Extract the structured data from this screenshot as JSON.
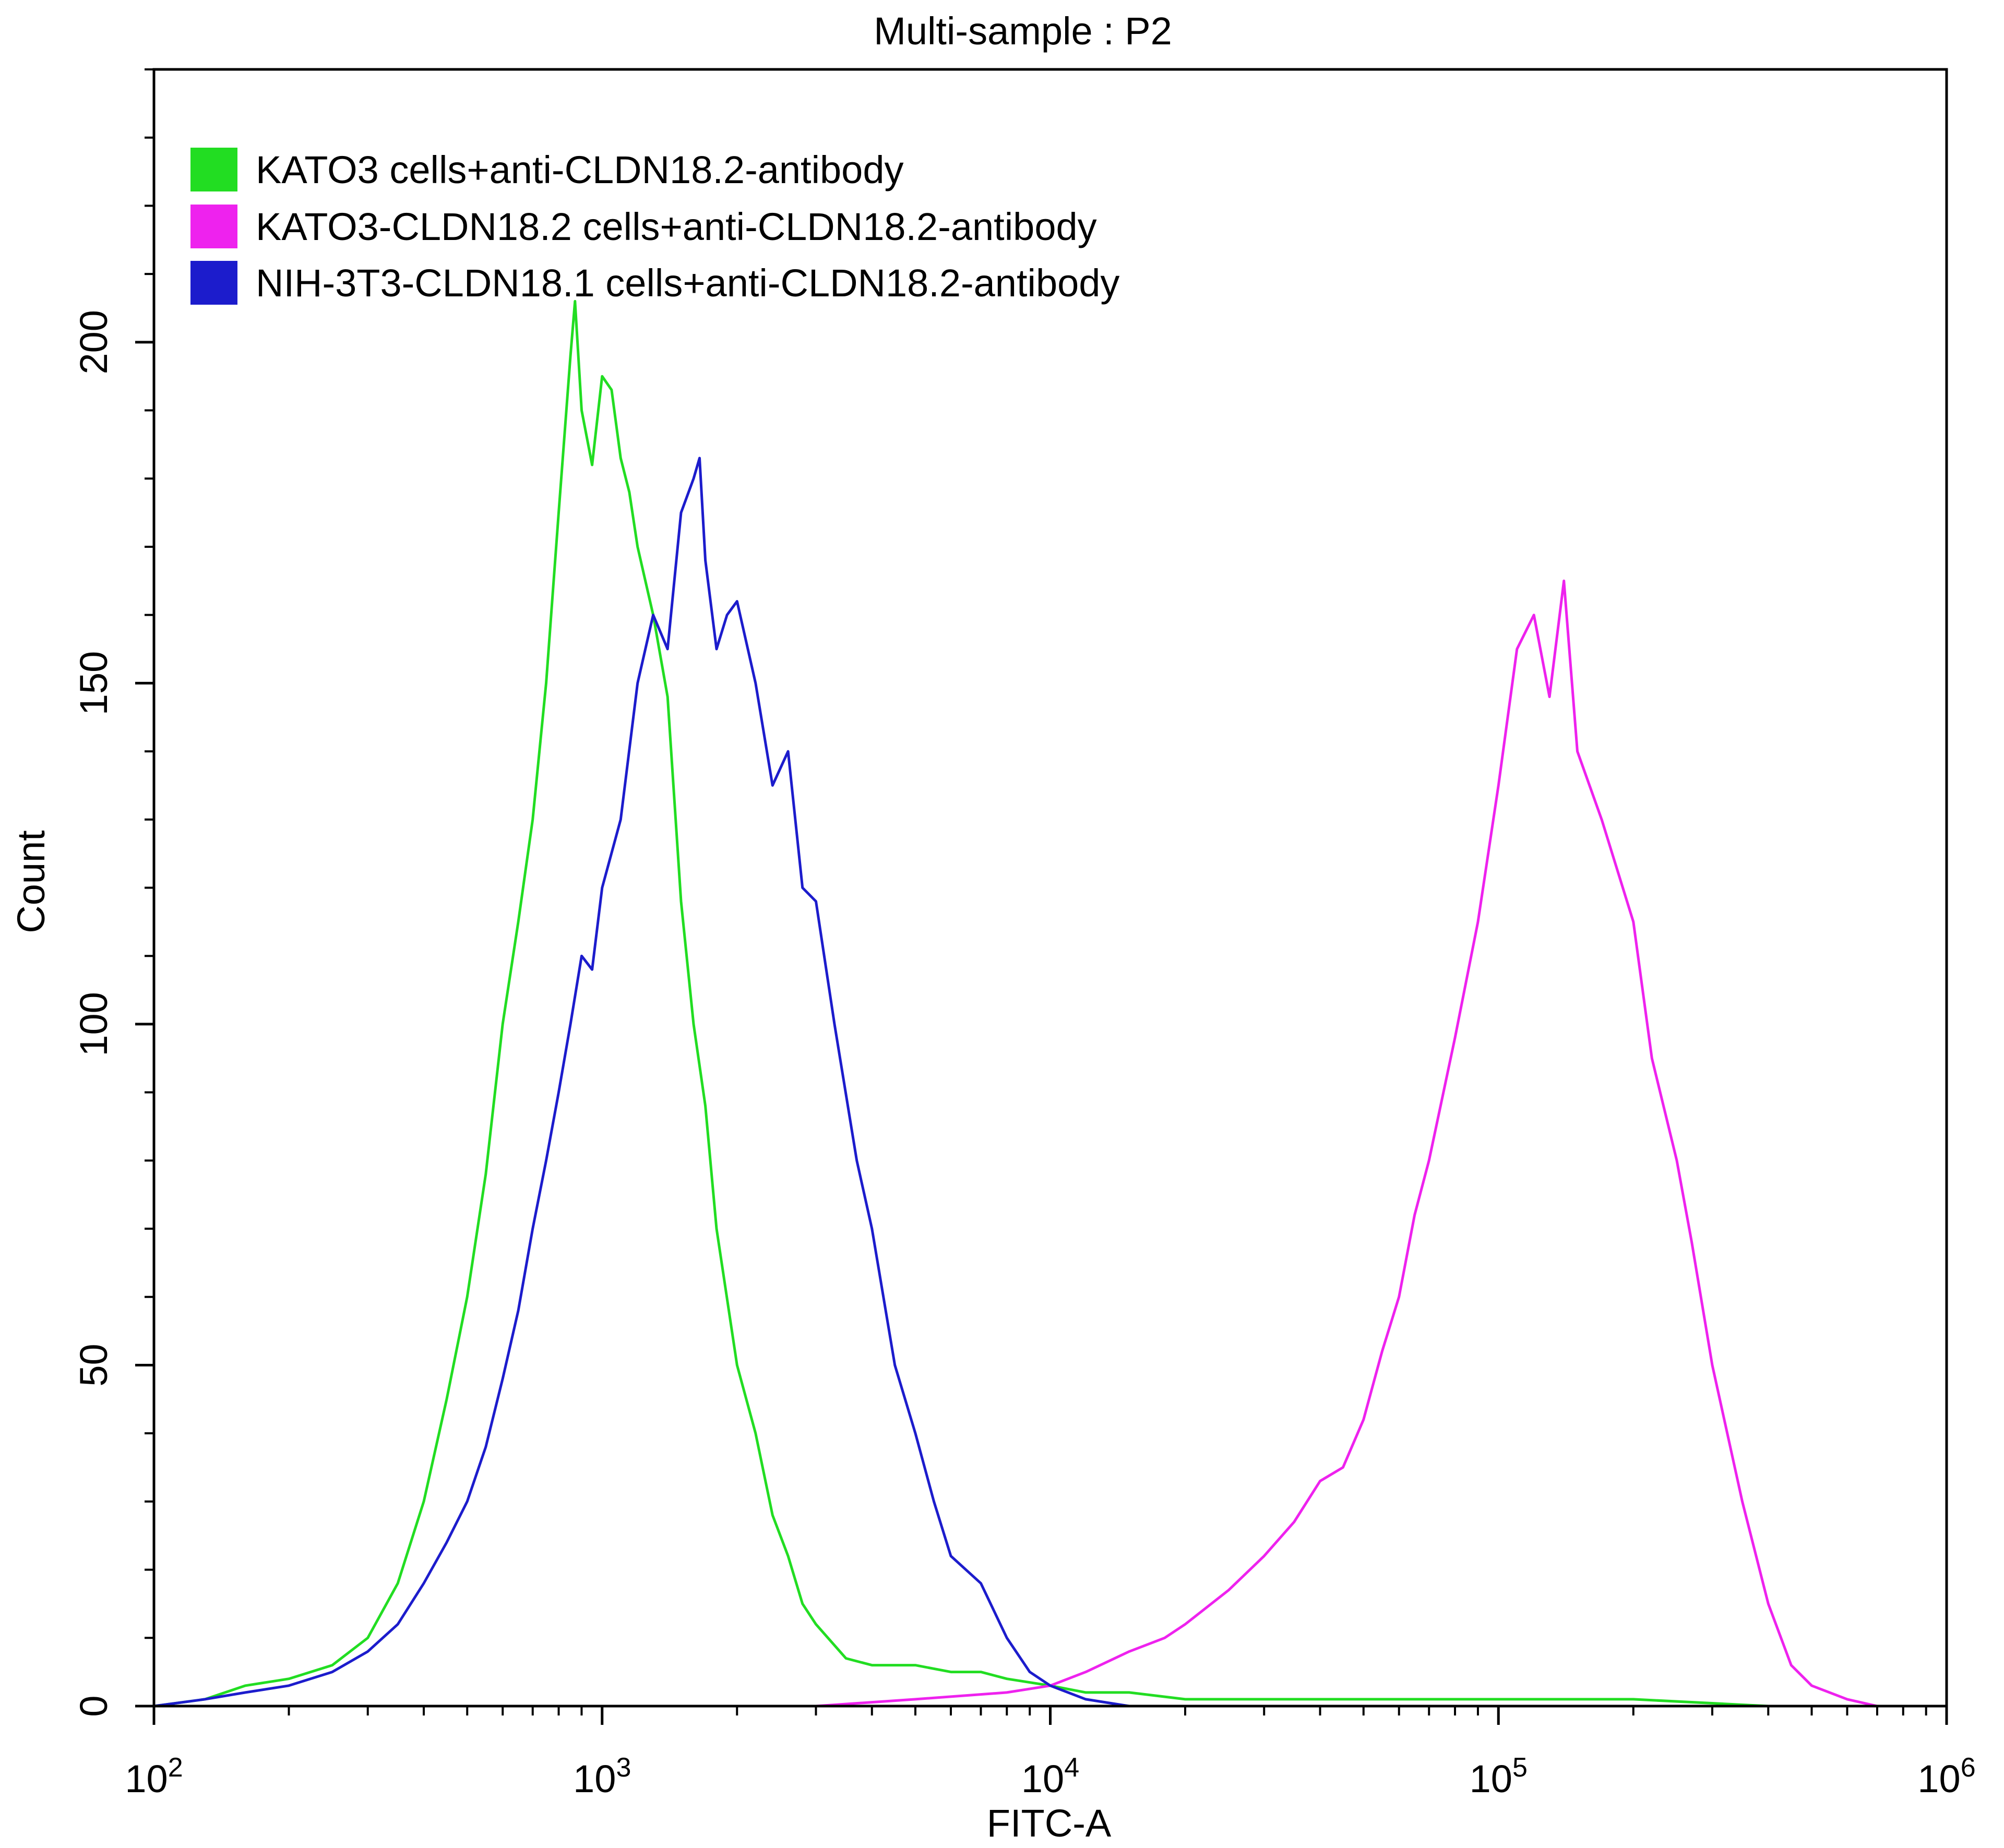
{
  "chart_data": {
    "type": "line",
    "title": "Multi-sample : P2",
    "xlabel": "FITC-A",
    "ylabel": "Count",
    "xscale": "log",
    "xlim": [
      100,
      1000000
    ],
    "ylim": [
      0,
      240
    ],
    "x_ticks": [
      {
        "value": 100,
        "base": "10",
        "exp": "2"
      },
      {
        "value": 1000,
        "base": "10",
        "exp": "3"
      },
      {
        "value": 10000,
        "base": "10",
        "exp": "4"
      },
      {
        "value": 100000,
        "base": "10",
        "exp": "5"
      },
      {
        "value": 1000000,
        "base": "10",
        "exp": "6"
      }
    ],
    "y_ticks": [
      0,
      50,
      100,
      150,
      200
    ],
    "grid": false,
    "legend_position": "top-left",
    "series": [
      {
        "name": "KATO3 cells+anti-CLDN18.2-antibody",
        "color": "#22dd22",
        "x": [
          100,
          130,
          160,
          200,
          250,
          300,
          350,
          400,
          450,
          500,
          550,
          600,
          650,
          700,
          750,
          800,
          850,
          870,
          900,
          950,
          1000,
          1050,
          1100,
          1150,
          1200,
          1300,
          1400,
          1500,
          1600,
          1700,
          1800,
          2000,
          2200,
          2400,
          2600,
          2800,
          3000,
          3500,
          4000,
          5000,
          6000,
          7000,
          8000,
          10000,
          12000,
          15000,
          20000,
          30000,
          50000,
          100000,
          200000,
          400000,
          700000
        ],
        "y": [
          0,
          1,
          3,
          4,
          6,
          10,
          18,
          30,
          45,
          60,
          78,
          100,
          115,
          130,
          150,
          175,
          198,
          206,
          190,
          182,
          195,
          193,
          183,
          178,
          170,
          160,
          148,
          118,
          100,
          88,
          70,
          50,
          40,
          28,
          22,
          15,
          12,
          7,
          6,
          6,
          5,
          5,
          4,
          3,
          2,
          2,
          1,
          1,
          1,
          1,
          1,
          0,
          0
        ]
      },
      {
        "name": "KATO3-CLDN18.2 cells+anti-CLDN18.2-antibody",
        "color": "#ee22ee",
        "x": [
          1000,
          3000,
          5000,
          8000,
          10000,
          12000,
          15000,
          18000,
          20000,
          25000,
          30000,
          35000,
          40000,
          45000,
          50000,
          55000,
          60000,
          65000,
          70000,
          80000,
          90000,
          100000,
          110000,
          120000,
          130000,
          140000,
          150000,
          170000,
          200000,
          220000,
          250000,
          270000,
          300000,
          350000,
          400000,
          450000,
          500000,
          600000,
          700000
        ],
        "y": [
          0,
          0,
          1,
          2,
          3,
          5,
          8,
          10,
          12,
          17,
          22,
          27,
          33,
          35,
          42,
          52,
          60,
          72,
          80,
          98,
          115,
          135,
          155,
          160,
          148,
          165,
          140,
          130,
          115,
          95,
          80,
          68,
          50,
          30,
          15,
          6,
          3,
          1,
          0
        ]
      },
      {
        "name": "NIH-3T3-CLDN18.1 cells+anti-CLDN18.2-antibody",
        "color": "#1c1ccc",
        "x": [
          100,
          130,
          160,
          200,
          250,
          300,
          350,
          400,
          450,
          500,
          550,
          600,
          650,
          700,
          750,
          800,
          850,
          900,
          950,
          1000,
          1100,
          1200,
          1300,
          1400,
          1500,
          1600,
          1650,
          1700,
          1800,
          1900,
          2000,
          2200,
          2400,
          2600,
          2800,
          3000,
          3300,
          3700,
          4000,
          4500,
          5000,
          5500,
          6000,
          7000,
          8000,
          9000,
          10000,
          12000,
          15000
        ],
        "y": [
          0,
          1,
          2,
          3,
          5,
          8,
          12,
          18,
          24,
          30,
          38,
          48,
          58,
          70,
          80,
          90,
          100,
          110,
          108,
          120,
          130,
          150,
          160,
          155,
          175,
          180,
          183,
          168,
          155,
          160,
          162,
          150,
          135,
          140,
          120,
          118,
          100,
          80,
          70,
          50,
          40,
          30,
          22,
          18,
          10,
          5,
          3,
          1,
          0
        ]
      }
    ]
  }
}
